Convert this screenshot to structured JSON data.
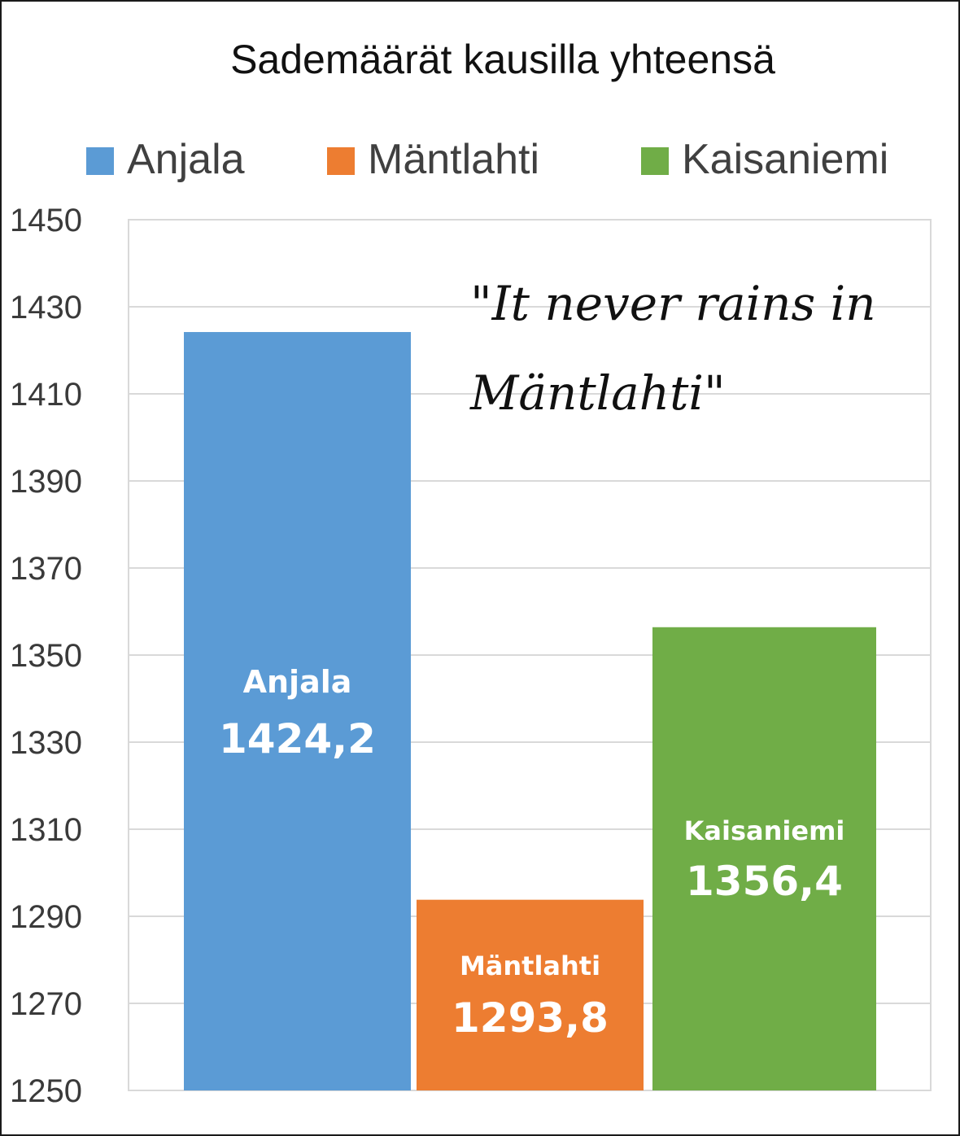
{
  "chart_data": {
    "type": "bar",
    "title": "Sademäärät kausilla yhteensä",
    "categories": [
      "Anjala",
      "Mäntlahti",
      "Kaisaniemi"
    ],
    "values": [
      1424.2,
      1293.8,
      1356.4
    ],
    "value_labels": [
      "1424,2",
      "1293,8",
      "1356,4"
    ],
    "colors": [
      "#5b9bd5",
      "#ed7d31",
      "#70ad47"
    ],
    "legend": [
      "Anjala",
      "Mäntlahti",
      "Kaisaniemi"
    ],
    "legend_position": "top",
    "ylim": [
      1250,
      1450
    ],
    "yticks": [
      1250,
      1270,
      1290,
      1310,
      1330,
      1350,
      1370,
      1390,
      1410,
      1430,
      1450
    ],
    "grid": true,
    "xlabel": "",
    "ylabel": "",
    "annotation": "\"It never rains in Mäntlahti\""
  }
}
